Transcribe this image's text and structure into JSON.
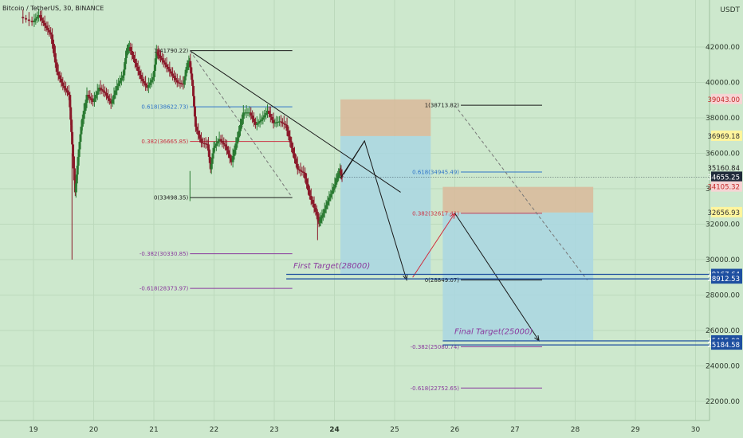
{
  "header": {
    "symbol_title": "Bitcoin / TetherUS, 30, BINANCE"
  },
  "axis": {
    "currency_label": "USDT"
  },
  "colors": {
    "background": "#cde8cd",
    "candle_up": "#2a7a32",
    "candle_down": "#8a1a2a",
    "fib_black": "#1a1a1a",
    "fib_blue": "#2f74c8",
    "fib_red": "#cc3344",
    "fib_purple": "#8a3a9e",
    "stop_zone": "#d9b99a",
    "target_zone": "#a9d6e2",
    "scenario_line": "#d12a3a",
    "trend_line": "#1a1a1a",
    "ray_gray": "#777777"
  },
  "chart_data": {
    "type": "candlestick",
    "ylim": [
      21000,
      44000
    ],
    "x_ticks": [
      "19",
      "20",
      "21",
      "22",
      "23",
      "24",
      "25",
      "26",
      "27",
      "28",
      "29",
      "30"
    ],
    "y_ticks": [
      "42000.00",
      "40000.00",
      "38000.00",
      "36000.00",
      "34000.00",
      "32000.00",
      "30000.00",
      "28000.00",
      "26000.00",
      "24000.00",
      "22000.00"
    ],
    "price_badges": [
      {
        "label": "39043.00",
        "value": 39043,
        "bg": "#f6d4d4",
        "fg": "#c62828"
      },
      {
        "label": "36969.18",
        "value": 36969.18,
        "bg": "#fff59d",
        "fg": "#333333"
      },
      {
        "label": "35160.84",
        "value": 35160.84,
        "bg": "#cde8cd",
        "fg": "#222222",
        "subtext": "07:54"
      },
      {
        "label": "34655.25",
        "value": 34655.25,
        "bg": "#1f2a3a",
        "fg": "#ffffff"
      },
      {
        "label": "34105.32",
        "value": 34105.32,
        "bg": "#f6d4d4",
        "fg": "#c62828"
      },
      {
        "label": "32656.93",
        "value": 32656.93,
        "bg": "#fff59d",
        "fg": "#333333"
      },
      {
        "label": "29167.64",
        "value": 29167.64,
        "bg": "#1e4fa0",
        "fg": "#ffffff"
      },
      {
        "label": "28912.53",
        "value": 28912.53,
        "bg": "#1e4fa0",
        "fg": "#ffffff"
      },
      {
        "label": "25415.00",
        "value": 25415,
        "bg": "#1e4fa0",
        "fg": "#ffffff"
      },
      {
        "label": "25184.58",
        "value": 25184.58,
        "bg": "#1e4fa0",
        "fg": "#ffffff"
      }
    ],
    "fib_left": [
      {
        "label": "1(41790.22)",
        "value": 41790.22,
        "color": "black"
      },
      {
        "label": "0.618(38622.73)",
        "value": 38622.73,
        "color": "blue"
      },
      {
        "label": "0.382(36665.85)",
        "value": 36665.85,
        "color": "red"
      },
      {
        "label": "0(33498.35)",
        "value": 33498.35,
        "color": "black"
      },
      {
        "label": "-0.382(30330.85)",
        "value": 30330.85,
        "color": "purple"
      },
      {
        "label": "-0.618(28373.97)",
        "value": 28373.97,
        "color": "purple"
      }
    ],
    "fib_right": [
      {
        "label": "1(38713.82)",
        "value": 38713.82,
        "color": "black"
      },
      {
        "label": "0.618(34945.49)",
        "value": 34945.49,
        "color": "blue"
      },
      {
        "label": "0.382(32617.41)",
        "value": 32617.41,
        "color": "red"
      },
      {
        "label": "0(28849.07)",
        "value": 28849.07,
        "color": "black"
      },
      {
        "label": "-0.382(25080.74)",
        "value": 25080.74,
        "color": "purple"
      },
      {
        "label": "-0.618(22752.65)",
        "value": 22752.65,
        "color": "purple"
      }
    ],
    "annotations": [
      {
        "text": "First Target(28000)"
      },
      {
        "text": "Final Target(25000)"
      }
    ],
    "price_path": [
      [
        18.8,
        43700
      ],
      [
        19.0,
        43400
      ],
      [
        19.1,
        43800
      ],
      [
        19.2,
        43200
      ],
      [
        19.3,
        42700
      ],
      [
        19.4,
        40600
      ],
      [
        19.5,
        39800
      ],
      [
        19.6,
        39300
      ],
      [
        19.65,
        36500
      ],
      [
        19.7,
        33800
      ],
      [
        19.75,
        35800
      ],
      [
        19.8,
        37500
      ],
      [
        19.9,
        39300
      ],
      [
        20.0,
        38900
      ],
      [
        20.1,
        39700
      ],
      [
        20.2,
        39400
      ],
      [
        20.3,
        38800
      ],
      [
        20.4,
        39800
      ],
      [
        20.5,
        40400
      ],
      [
        20.55,
        41700
      ],
      [
        20.6,
        42000
      ],
      [
        20.7,
        41100
      ],
      [
        20.8,
        40200
      ],
      [
        20.9,
        39700
      ],
      [
        21.0,
        40300
      ],
      [
        21.05,
        41700
      ],
      [
        21.1,
        41500
      ],
      [
        21.2,
        41000
      ],
      [
        21.3,
        40500
      ],
      [
        21.4,
        40000
      ],
      [
        21.5,
        39900
      ],
      [
        21.55,
        40800
      ],
      [
        21.6,
        41200
      ],
      [
        21.65,
        39800
      ],
      [
        21.7,
        37500
      ],
      [
        21.8,
        36600
      ],
      [
        21.9,
        36500
      ],
      [
        21.95,
        35100
      ],
      [
        22.0,
        36300
      ],
      [
        22.1,
        36800
      ],
      [
        22.2,
        36400
      ],
      [
        22.3,
        35500
      ],
      [
        22.4,
        36900
      ],
      [
        22.5,
        38300
      ],
      [
        22.6,
        38300
      ],
      [
        22.7,
        37600
      ],
      [
        22.8,
        37900
      ],
      [
        22.9,
        38400
      ],
      [
        23.0,
        37700
      ],
      [
        23.1,
        37800
      ],
      [
        23.2,
        37600
      ],
      [
        23.3,
        36300
      ],
      [
        23.4,
        35100
      ],
      [
        23.5,
        34900
      ],
      [
        23.6,
        33600
      ],
      [
        23.7,
        32700
      ],
      [
        23.75,
        32100
      ],
      [
        23.8,
        32400
      ],
      [
        23.9,
        33300
      ],
      [
        24.0,
        34100
      ],
      [
        24.05,
        34600
      ],
      [
        24.1,
        35000
      ],
      [
        24.13,
        34655
      ]
    ],
    "boxes": [
      {
        "name": "first-stop",
        "x0": 24.1,
        "x1": 25.6,
        "y0": 36970,
        "y1": 39043
      },
      {
        "name": "first-target",
        "x0": 24.1,
        "x1": 25.6,
        "y0": 29168,
        "y1": 36970
      },
      {
        "name": "final-stop",
        "x0": 25.8,
        "x1": 28.3,
        "y0": 32657,
        "y1": 34105
      },
      {
        "name": "final-target",
        "x0": 25.8,
        "x1": 28.3,
        "y0": 25415,
        "y1": 32657
      }
    ],
    "scenario_paths": [
      {
        "name": "scenario-path-one",
        "color": "trend_line",
        "points": [
          [
            24.1,
            34600
          ],
          [
            24.5,
            36700
          ],
          [
            25.2,
            28849
          ]
        ]
      },
      {
        "name": "scenario-path-two",
        "color": "scenario_line",
        "points": [
          [
            25.3,
            29000
          ],
          [
            26.0,
            32617
          ]
        ]
      },
      {
        "name": "scenario-path-three",
        "color": "trend_line",
        "points": [
          [
            26.0,
            32617
          ],
          [
            27.4,
            25415
          ]
        ]
      }
    ],
    "trend_lines": [
      {
        "name": "down-trendline",
        "color": "trend_line",
        "dash": false,
        "points": [
          [
            21.6,
            41790
          ],
          [
            25.1,
            33800
          ]
        ]
      },
      {
        "name": "fib-ray-left",
        "color": "ray_gray",
        "dash": true,
        "points": [
          [
            21.6,
            41790
          ],
          [
            23.3,
            33500
          ]
        ]
      },
      {
        "name": "fib-ray-right",
        "color": "ray_gray",
        "dash": true,
        "points": [
          [
            26.0,
            38713
          ],
          [
            28.2,
            28849
          ]
        ]
      }
    ]
  }
}
